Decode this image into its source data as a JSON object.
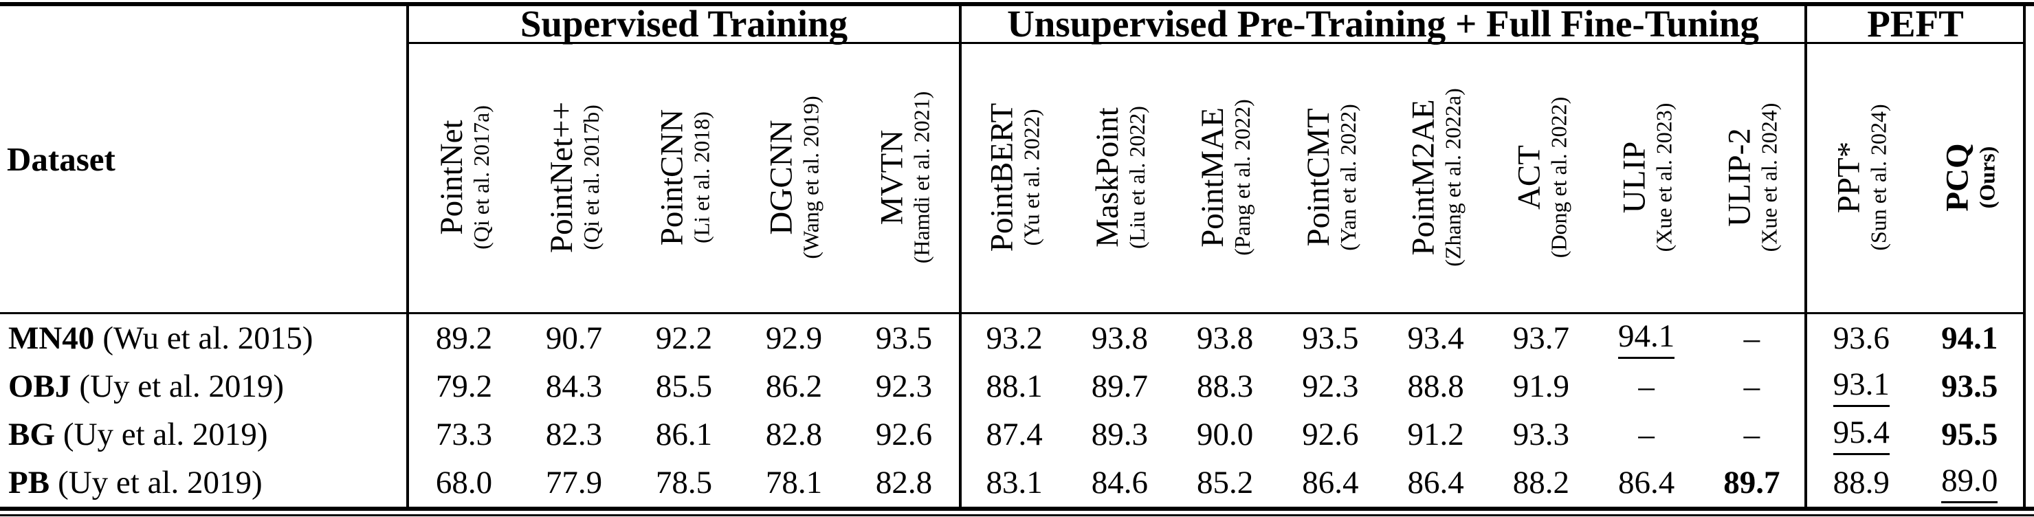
{
  "table": {
    "dataset_header": "Dataset",
    "groups": [
      {
        "label": "Supervised Training"
      },
      {
        "label": "Unsupervised Pre-Training + Full Fine-Tuning"
      },
      {
        "label": "PEFT"
      }
    ],
    "columns": [
      {
        "name": "PointNet",
        "cite": "(Qi et al. 2017a)",
        "group": 0,
        "bold": false
      },
      {
        "name": "PointNet++",
        "cite": "(Qi et al. 2017b)",
        "group": 0,
        "bold": false
      },
      {
        "name": "PointCNN",
        "cite": "(Li et al. 2018)",
        "group": 0,
        "bold": false
      },
      {
        "name": "DGCNN",
        "cite": "(Wang et al. 2019)",
        "group": 0,
        "bold": false
      },
      {
        "name": "MVTN",
        "cite": "(Hamdi et al. 2021)",
        "group": 0,
        "bold": false
      },
      {
        "name": "PointBERT",
        "cite": "(Yu et al. 2022)",
        "group": 1,
        "bold": false
      },
      {
        "name": "MaskPoint",
        "cite": "(Liu et al. 2022)",
        "group": 1,
        "bold": false
      },
      {
        "name": "PointMAE",
        "cite": "(Pang et al. 2022)",
        "group": 1,
        "bold": false
      },
      {
        "name": "PointCMT",
        "cite": "(Yan et al. 2022)",
        "group": 1,
        "bold": false
      },
      {
        "name": "PointM2AE",
        "cite": "(Zhang et al. 2022a)",
        "group": 1,
        "bold": false
      },
      {
        "name": "ACT",
        "cite": "(Dong et al. 2022)",
        "group": 1,
        "bold": false
      },
      {
        "name": "ULIP",
        "cite": "(Xue et al. 2023)",
        "group": 1,
        "bold": false
      },
      {
        "name": "ULIP-2",
        "cite": "(Xue et al. 2024)",
        "group": 1,
        "bold": false
      },
      {
        "name": "PPT*",
        "cite": "(Sun et al. 2024)",
        "group": 2,
        "bold": false
      },
      {
        "name": "PCQ",
        "cite": "(Ours)",
        "group": 2,
        "bold": true
      }
    ],
    "rows": [
      {
        "name": "MN40",
        "cite": "(Wu et al. 2015)",
        "values": [
          {
            "v": "89.2",
            "s": "n"
          },
          {
            "v": "90.7",
            "s": "n"
          },
          {
            "v": "92.2",
            "s": "n"
          },
          {
            "v": "92.9",
            "s": "n"
          },
          {
            "v": "93.5",
            "s": "n"
          },
          {
            "v": "93.2",
            "s": "n"
          },
          {
            "v": "93.8",
            "s": "n"
          },
          {
            "v": "93.8",
            "s": "n"
          },
          {
            "v": "93.5",
            "s": "n"
          },
          {
            "v": "93.4",
            "s": "n"
          },
          {
            "v": "93.7",
            "s": "n"
          },
          {
            "v": "94.1",
            "s": "u"
          },
          {
            "v": "–",
            "s": "n"
          },
          {
            "v": "93.6",
            "s": "n"
          },
          {
            "v": "94.1",
            "s": "b"
          }
        ]
      },
      {
        "name": "OBJ",
        "cite": "(Uy et al. 2019)",
        "values": [
          {
            "v": "79.2",
            "s": "n"
          },
          {
            "v": "84.3",
            "s": "n"
          },
          {
            "v": "85.5",
            "s": "n"
          },
          {
            "v": "86.2",
            "s": "n"
          },
          {
            "v": "92.3",
            "s": "n"
          },
          {
            "v": "88.1",
            "s": "n"
          },
          {
            "v": "89.7",
            "s": "n"
          },
          {
            "v": "88.3",
            "s": "n"
          },
          {
            "v": "92.3",
            "s": "n"
          },
          {
            "v": "88.8",
            "s": "n"
          },
          {
            "v": "91.9",
            "s": "n"
          },
          {
            "v": "–",
            "s": "n"
          },
          {
            "v": "–",
            "s": "n"
          },
          {
            "v": "93.1",
            "s": "u"
          },
          {
            "v": "93.5",
            "s": "b"
          }
        ]
      },
      {
        "name": "BG",
        "cite": "(Uy et al. 2019)",
        "values": [
          {
            "v": "73.3",
            "s": "n"
          },
          {
            "v": "82.3",
            "s": "n"
          },
          {
            "v": "86.1",
            "s": "n"
          },
          {
            "v": "82.8",
            "s": "n"
          },
          {
            "v": "92.6",
            "s": "n"
          },
          {
            "v": "87.4",
            "s": "n"
          },
          {
            "v": "89.3",
            "s": "n"
          },
          {
            "v": "90.0",
            "s": "n"
          },
          {
            "v": "92.6",
            "s": "n"
          },
          {
            "v": "91.2",
            "s": "n"
          },
          {
            "v": "93.3",
            "s": "n"
          },
          {
            "v": "–",
            "s": "n"
          },
          {
            "v": "–",
            "s": "n"
          },
          {
            "v": "95.4",
            "s": "u"
          },
          {
            "v": "95.5",
            "s": "b"
          }
        ]
      },
      {
        "name": "PB",
        "cite": "(Uy et al. 2019)",
        "values": [
          {
            "v": "68.0",
            "s": "n"
          },
          {
            "v": "77.9",
            "s": "n"
          },
          {
            "v": "78.5",
            "s": "n"
          },
          {
            "v": "78.1",
            "s": "n"
          },
          {
            "v": "82.8",
            "s": "n"
          },
          {
            "v": "83.1",
            "s": "n"
          },
          {
            "v": "84.6",
            "s": "n"
          },
          {
            "v": "85.2",
            "s": "n"
          },
          {
            "v": "86.4",
            "s": "n"
          },
          {
            "v": "86.4",
            "s": "n"
          },
          {
            "v": "88.2",
            "s": "n"
          },
          {
            "v": "86.4",
            "s": "n"
          },
          {
            "v": "89.7",
            "s": "b"
          },
          {
            "v": "88.9",
            "s": "n"
          },
          {
            "v": "89.0",
            "s": "u"
          }
        ]
      }
    ]
  }
}
